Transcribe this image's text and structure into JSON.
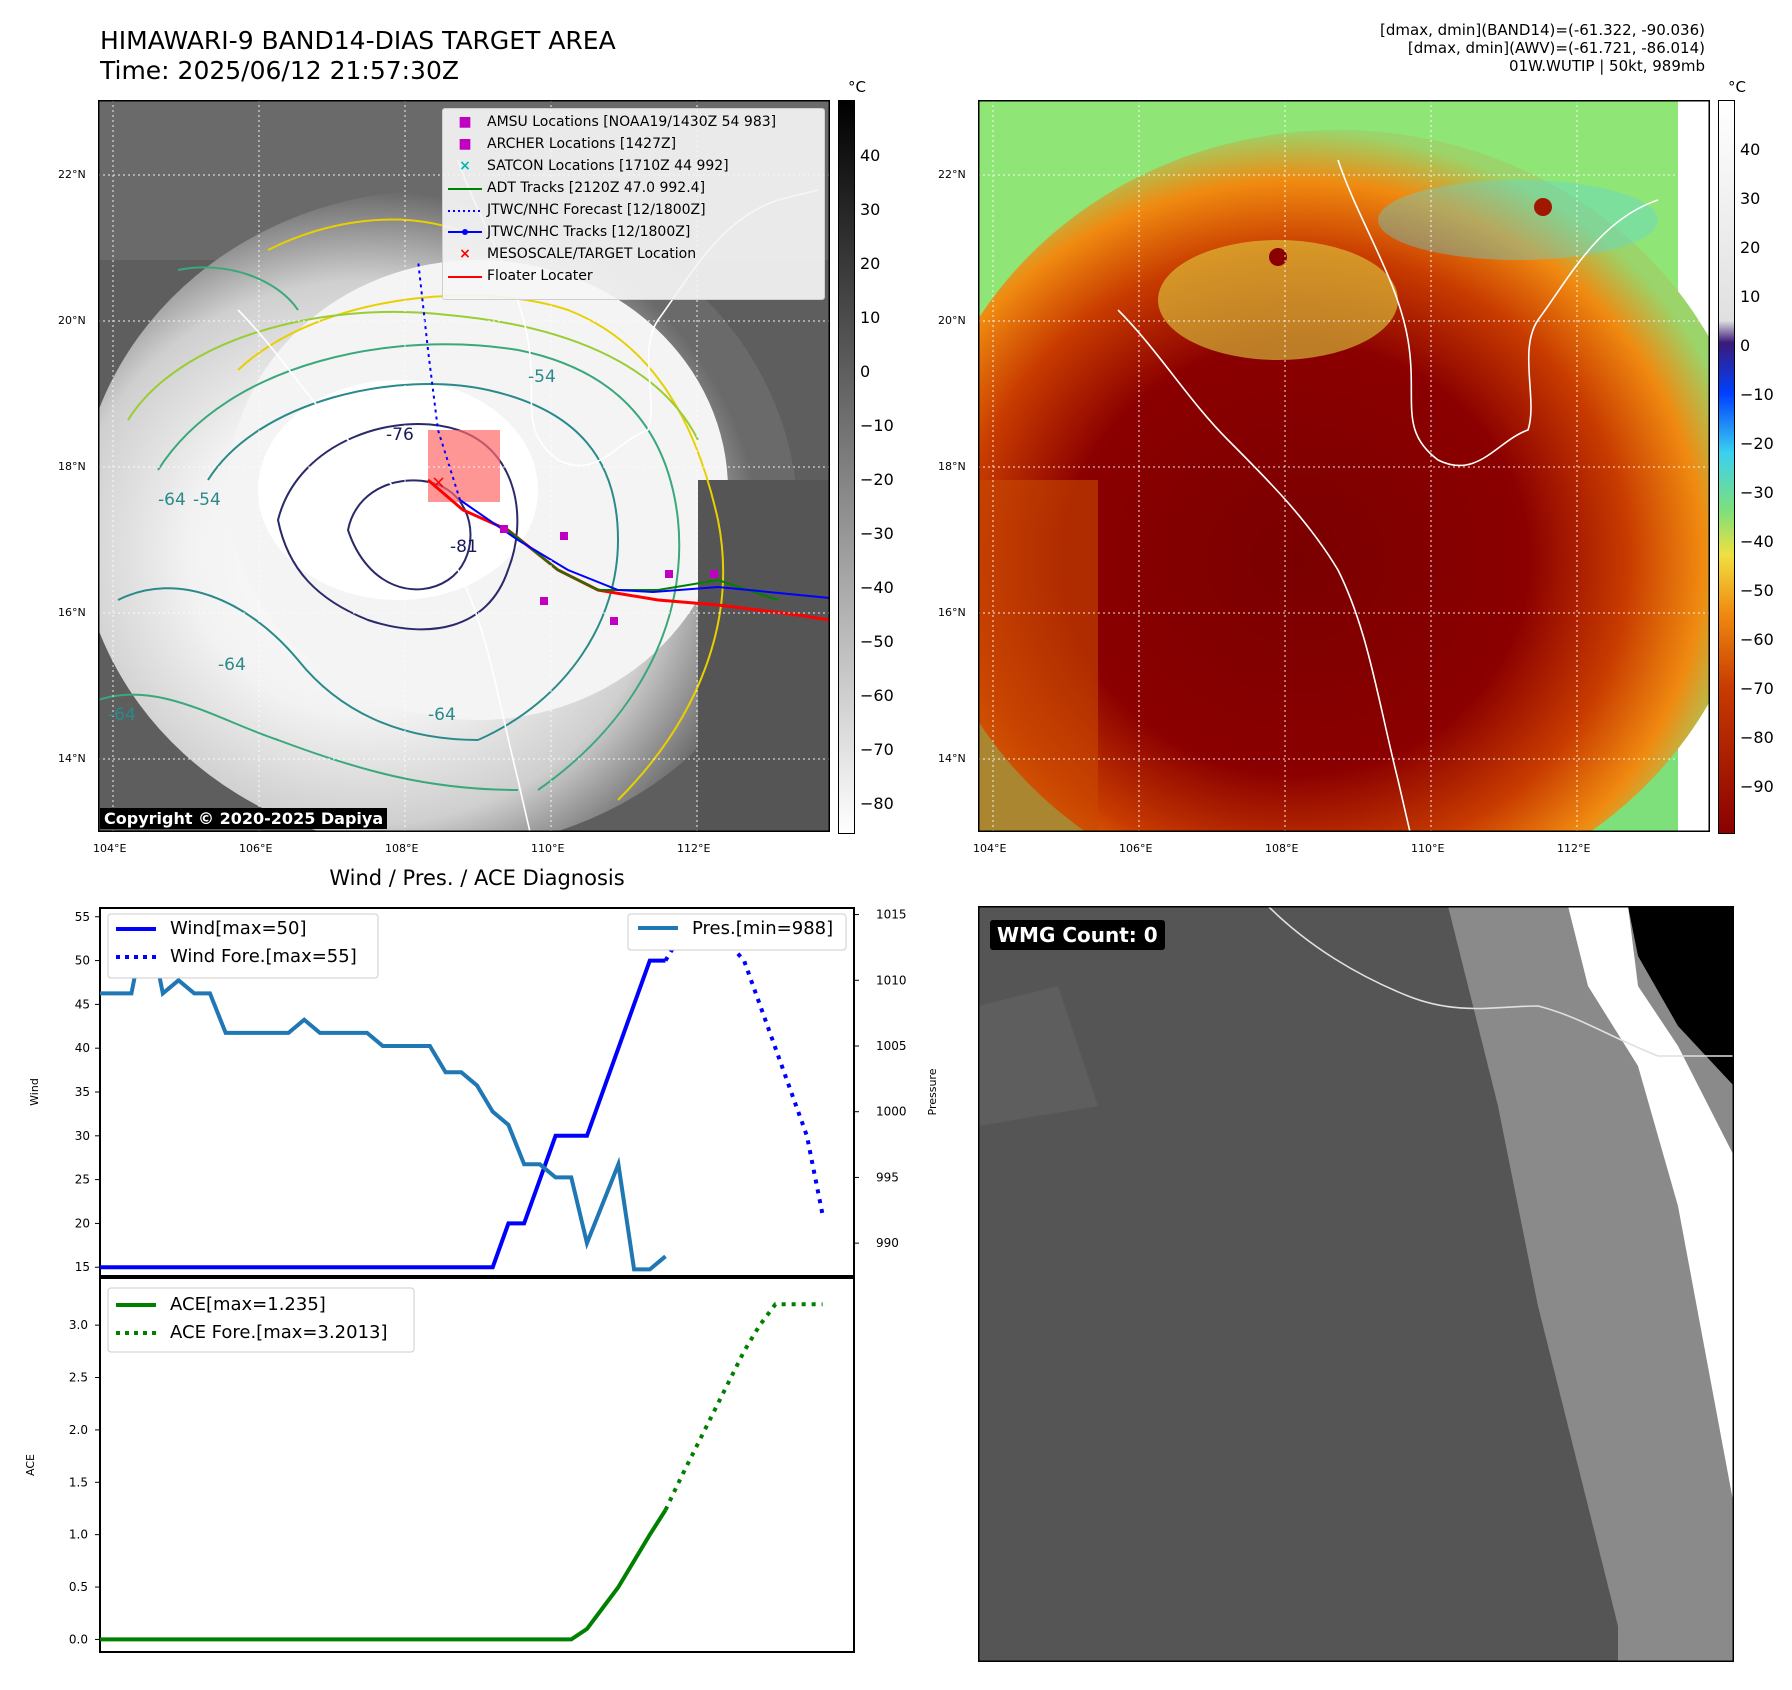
{
  "header": {
    "title": "HIMAWARI-9 BAND14-DIAS TARGET AREA",
    "time": "Time: 2025/06/12 21:57:30Z",
    "info_line1": "[dmax, dmin](BAND14)=(-61.322, -90.036)",
    "info_line2": "[dmax, dmin](AWV)=(-61.721, -86.014)",
    "info_line3": "01W.WUTIP | 50kt, 989mb"
  },
  "map": {
    "lat_labels": [
      "22°N",
      "20°N",
      "18°N",
      "16°N",
      "14°N"
    ],
    "lon_labels": [
      "104°E",
      "106°E",
      "108°E",
      "110°E",
      "112°E"
    ],
    "copyright": "Copyright © 2020-2025 Dapiya",
    "contour_labels": [
      "-76",
      "-81",
      "-64",
      "-54",
      "-64",
      "-64",
      "-54",
      "-64"
    ],
    "colorbar_unit": "°C",
    "gray_colorbar_ticks": [
      "40",
      "30",
      "20",
      "10",
      "0",
      "−10",
      "−20",
      "−30",
      "−40",
      "−50",
      "−60",
      "−70",
      "−80"
    ],
    "color_colorbar_ticks": [
      "40",
      "30",
      "20",
      "10",
      "0",
      "−10",
      "−20",
      "−30",
      "−40",
      "−50",
      "−60",
      "−70",
      "−80",
      "−90"
    ],
    "legend": [
      {
        "label": "AMSU Locations [NOAA19/1430Z 54 983]",
        "symbol": "square",
        "color": "#c000c0"
      },
      {
        "label": "ARCHER Locations [1427Z]",
        "symbol": "square",
        "color": "#c000c0"
      },
      {
        "label": "SATCON Locations [1710Z 44 992]",
        "symbol": "x",
        "color": "#00b8b8"
      },
      {
        "label": "ADT Tracks [2120Z 47.0 992.4]",
        "symbol": "line",
        "color": "#008000"
      },
      {
        "label": "JTWC/NHC Forecast [12/1800Z]",
        "symbol": "dotted",
        "color": "#0000ff"
      },
      {
        "label": "JTWC/NHC Tracks [12/1800Z]",
        "symbol": "line-dot",
        "color": "#0000ff"
      },
      {
        "label": "MESOSCALE/TARGET Location",
        "symbol": "x",
        "color": "#ff0000"
      },
      {
        "label": "Floater Locater",
        "symbol": "line",
        "color": "#ff0000"
      }
    ]
  },
  "chart_data": [
    {
      "type": "line",
      "title": "Wind / Pres. / ACE Diagnosis",
      "ylabel": "Wind",
      "y2label": "Pressure",
      "ylim": [
        14,
        56
      ],
      "y2lim": [
        987.5,
        1015.5
      ],
      "yticks": [
        "55",
        "50",
        "45",
        "40",
        "35",
        "30",
        "25",
        "20",
        "15"
      ],
      "y2ticks": [
        "1015",
        "1010",
        "1005",
        "1000",
        "995",
        "990"
      ],
      "series": [
        {
          "name": "Wind[max=50]",
          "style": "solid",
          "color": "#0000ff",
          "x": [
            0,
            25,
            26,
            27,
            28,
            29,
            30,
            31,
            32,
            33,
            34,
            35,
            36
          ],
          "values": [
            15,
            15,
            20,
            20,
            25,
            30,
            30,
            30,
            35,
            40,
            45,
            50,
            50
          ]
        },
        {
          "name": "Wind Fore.[max=55]",
          "style": "dotted",
          "color": "#0000ff",
          "x": [
            36,
            37,
            38,
            39,
            40,
            41,
            42,
            43,
            44,
            45,
            46
          ],
          "values": [
            50,
            53,
            55,
            53,
            52,
            50,
            45,
            40,
            35,
            30,
            21
          ]
        },
        {
          "name": "Pres.[min=988]",
          "style": "solid",
          "color": "#1f77b4",
          "x": [
            0,
            2,
            3,
            4,
            5,
            6,
            7,
            8,
            9,
            10,
            11,
            12,
            13,
            14,
            15,
            16,
            17,
            18,
            19,
            20,
            21,
            22,
            23,
            24,
            25,
            26,
            27,
            28,
            29,
            30,
            31,
            32,
            33,
            34,
            35,
            36
          ],
          "values": [
            1009,
            1009,
            1015,
            1009,
            1010,
            1009,
            1009,
            1006,
            1006,
            1006,
            1006,
            1006,
            1007,
            1006,
            1006,
            1006,
            1006,
            1005,
            1005,
            1005,
            1005,
            1003,
            1003,
            1002,
            1000,
            999,
            996,
            996,
            995,
            995,
            990,
            993,
            996,
            988,
            988,
            989
          ]
        }
      ]
    },
    {
      "type": "line",
      "ylabel": "ACE",
      "ylim": [
        -0.12,
        3.45
      ],
      "yticks": [
        "3.0",
        "2.5",
        "2.0",
        "1.5",
        "1.0",
        "0.5",
        "0.0"
      ],
      "series": [
        {
          "name": "ACE[max=1.235]",
          "style": "solid",
          "color": "#008000",
          "x": [
            0,
            30,
            31,
            32,
            33,
            34,
            35,
            36
          ],
          "values": [
            0,
            0,
            0.1,
            0.3,
            0.5,
            0.75,
            1.0,
            1.235
          ]
        },
        {
          "name": "ACE Fore.[max=3.2013]",
          "style": "dotted",
          "color": "#008000",
          "x": [
            36,
            37,
            38,
            39,
            40,
            41,
            42,
            43,
            44,
            45,
            46
          ],
          "values": [
            1.235,
            1.55,
            1.85,
            2.15,
            2.45,
            2.75,
            3.0,
            3.2,
            3.2,
            3.2,
            3.2
          ]
        }
      ]
    }
  ],
  "wmg": {
    "label": "WMG Count: 0"
  }
}
